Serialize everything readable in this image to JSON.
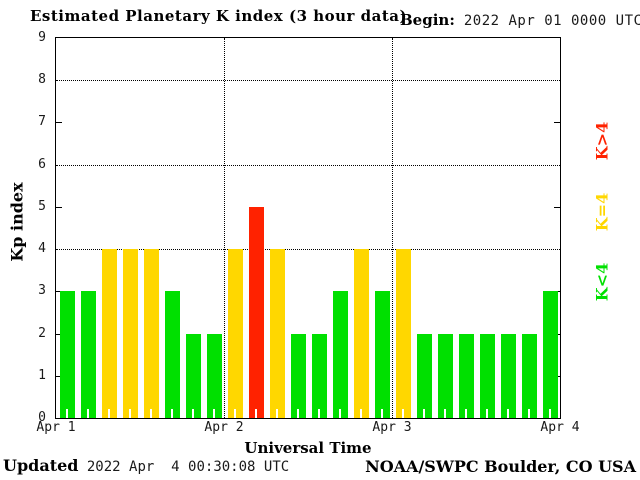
{
  "header": {
    "title": "Estimated Planetary K index (3 hour data)",
    "begin_label": "Begin:",
    "begin_value": "2022 Apr 01 0000 UTC"
  },
  "chart_data": {
    "type": "bar",
    "title": "Estimated Planetary K index (3 hour data)",
    "xlabel": "Universal Time",
    "ylabel": "Kp index",
    "ylim": [
      0,
      9
    ],
    "y_tick_labels": [
      "0",
      "1",
      "2",
      "3",
      "4",
      "5",
      "6",
      "7",
      "8",
      "9"
    ],
    "y_side_tick_values": [
      1,
      2,
      3,
      5,
      7
    ],
    "dotted_gridlines_y": [
      4,
      6,
      8
    ],
    "x_day_labels": [
      "Apr 1",
      "Apr 2",
      "Apr 3",
      "Apr 4"
    ],
    "bars_per_day": 8,
    "hours_per_bar": 3,
    "values": [
      3,
      3,
      4,
      4,
      4,
      3,
      2,
      2,
      4,
      5,
      4,
      2,
      2,
      3,
      4,
      3,
      4,
      2,
      2,
      2,
      2,
      2,
      2,
      3
    ],
    "colors": {
      "below4": "#00e000",
      "equal4": "#ffd700",
      "above4": "#ff2200"
    },
    "legend": [
      {
        "label": "K>4",
        "color": "#ff2200"
      },
      {
        "label": "K=4",
        "color": "#ffd700"
      },
      {
        "label": "K<4",
        "color": "#00e000"
      }
    ],
    "grid": "dotted horizontal at 4,6,8; dotted vertical at day boundaries",
    "legend_position": "right-rotated"
  },
  "footer": {
    "updated_label": "Updated",
    "updated_value": " 2022 Apr  4 00:30:08 UTC",
    "source": "NOAA/SWPC Boulder, CO USA"
  }
}
